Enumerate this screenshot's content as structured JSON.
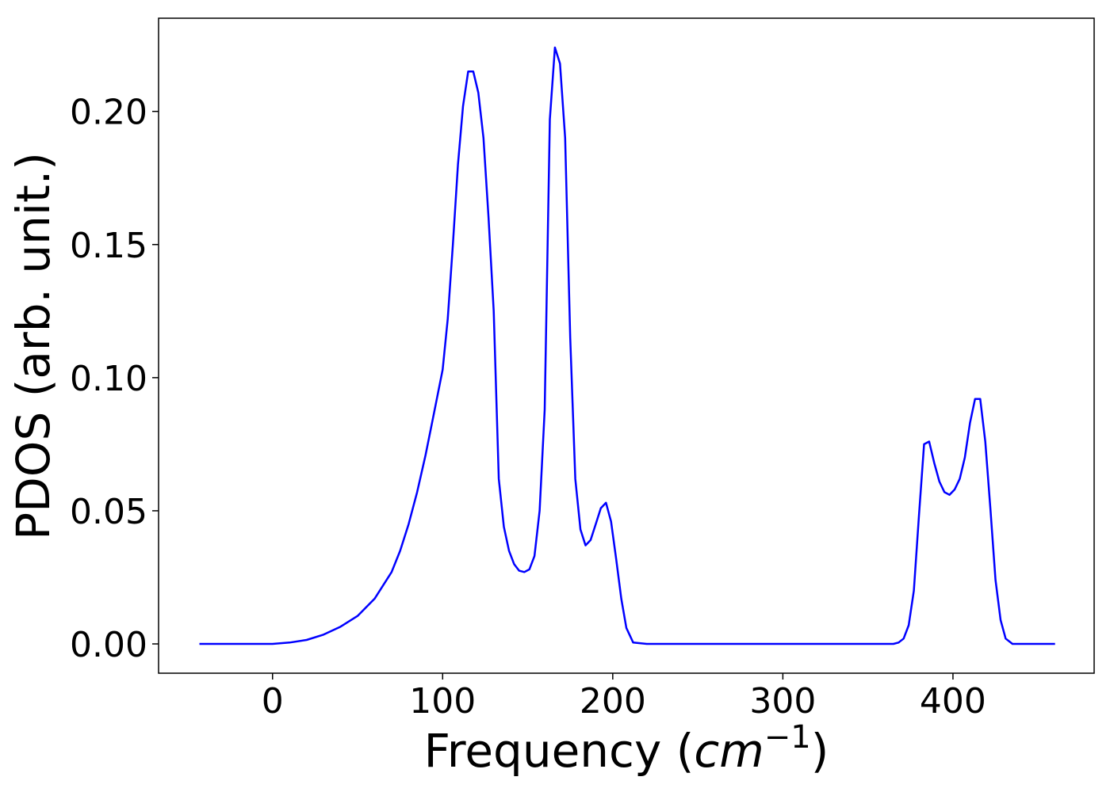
{
  "chart_data": {
    "type": "line",
    "title": "",
    "xlabel_text": "Frequency (",
    "xlabel_var": "cm",
    "xlabel_sup": "−1",
    "xlabel_close": ")",
    "ylabel": "PDOS (arb. unit.)",
    "xlim": [
      -67,
      483
    ],
    "ylim": [
      -0.011,
      0.235
    ],
    "xticks": [
      0,
      100,
      200,
      300,
      400
    ],
    "xtick_labels": [
      "0",
      "100",
      "200",
      "300",
      "400"
    ],
    "yticks": [
      0.0,
      0.05,
      0.1,
      0.15,
      0.2
    ],
    "ytick_labels": [
      "0.00",
      "0.05",
      "0.10",
      "0.15",
      "0.20"
    ],
    "grid": false,
    "legend": "none",
    "series": [
      {
        "color": "#0000ff",
        "x": [
          -43,
          0,
          10,
          20,
          30,
          40,
          50,
          60,
          70,
          75,
          80,
          85,
          90,
          95,
          100,
          103,
          106,
          109,
          112,
          115,
          118,
          121,
          124,
          127,
          130,
          133,
          136,
          139,
          142,
          145,
          148,
          151,
          154,
          157,
          160,
          163,
          166,
          169,
          172,
          175,
          178,
          181,
          184,
          187,
          190,
          193,
          196,
          199,
          202,
          205,
          208,
          212,
          220,
          300,
          365,
          368,
          371,
          374,
          377,
          380,
          383,
          386,
          389,
          392,
          395,
          398,
          401,
          404,
          407,
          410,
          413,
          416,
          419,
          422,
          425,
          428,
          431,
          435,
          460
        ],
        "y": [
          0.0,
          0.0,
          0.0005,
          0.0015,
          0.0035,
          0.0065,
          0.0105,
          0.017,
          0.027,
          0.035,
          0.045,
          0.057,
          0.071,
          0.087,
          0.103,
          0.122,
          0.15,
          0.18,
          0.202,
          0.215,
          0.215,
          0.207,
          0.19,
          0.16,
          0.125,
          0.062,
          0.044,
          0.035,
          0.03,
          0.0275,
          0.027,
          0.028,
          0.033,
          0.05,
          0.088,
          0.197,
          0.224,
          0.218,
          0.19,
          0.115,
          0.062,
          0.043,
          0.037,
          0.039,
          0.045,
          0.051,
          0.053,
          0.046,
          0.032,
          0.017,
          0.006,
          0.0005,
          0.0,
          0.0,
          0.0,
          0.0005,
          0.002,
          0.007,
          0.02,
          0.048,
          0.075,
          0.076,
          0.068,
          0.061,
          0.057,
          0.056,
          0.058,
          0.062,
          0.07,
          0.083,
          0.092,
          0.092,
          0.076,
          0.051,
          0.024,
          0.009,
          0.002,
          0.0,
          0.0
        ]
      }
    ]
  }
}
